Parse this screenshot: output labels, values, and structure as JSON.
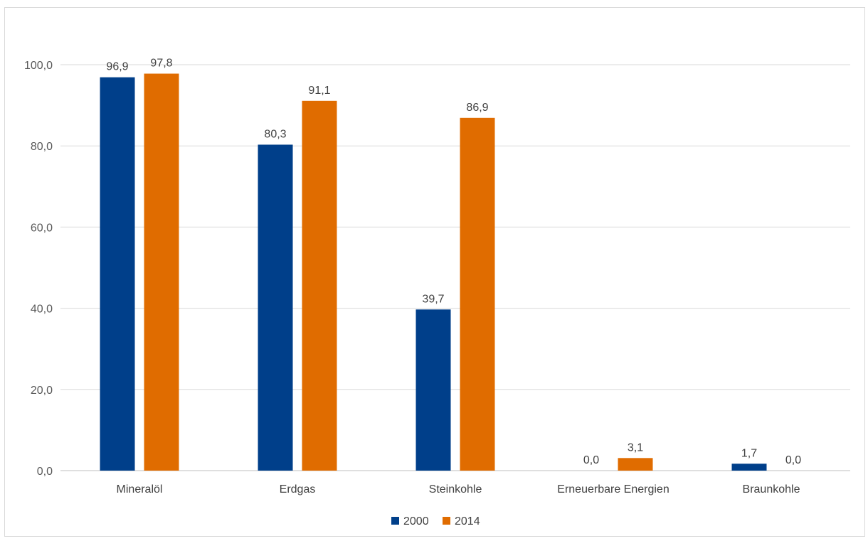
{
  "chart_data": {
    "type": "bar",
    "categories": [
      "Mineralöl",
      "Erdgas",
      "Steinkohle",
      "Erneuerbare Energien",
      "Braunkohle"
    ],
    "series": [
      {
        "name": "2000",
        "values": [
          96.9,
          80.3,
          39.7,
          0.0,
          1.7
        ],
        "labels": [
          "96,9",
          "80,3",
          "39,7",
          "0,0",
          "1,7"
        ],
        "color": "#003f8a"
      },
      {
        "name": "2014",
        "values": [
          97.8,
          91.1,
          86.9,
          3.1,
          0.0
        ],
        "labels": [
          "97,8",
          "91,1",
          "86,9",
          "3,1",
          "0,0"
        ],
        "color": "#e06c00"
      }
    ],
    "yticks": [
      "0,0",
      "20,0",
      "40,0",
      "60,0",
      "80,0",
      "100,0"
    ],
    "ytick_values": [
      0,
      20,
      40,
      60,
      80,
      100
    ],
    "ylim": [
      0,
      100
    ],
    "grid": true,
    "legend_position": "bottom"
  }
}
